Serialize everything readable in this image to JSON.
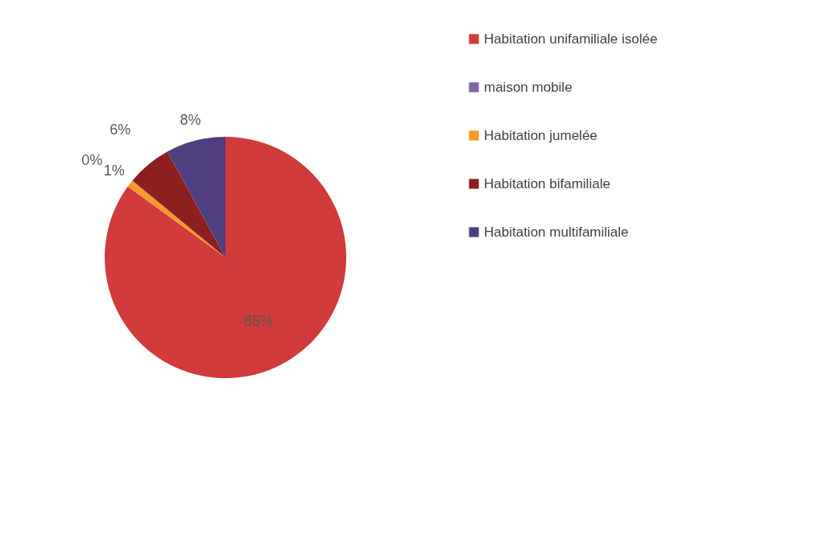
{
  "chart_data": {
    "type": "pie",
    "categories": [
      "Habitation unifamiliale isolée",
      "maison mobile",
      "Habitation jumelée",
      "Habitation bifamiliale",
      "Habitation multifamiliale"
    ],
    "values": [
      85,
      0,
      1,
      6,
      8
    ],
    "colors": [
      "#d13b3b",
      "#8064a2",
      "#f59a2b",
      "#8e1f1f",
      "#4f3f7f"
    ],
    "value_labels": [
      "85%",
      "0%",
      "1%",
      "6%",
      "8%"
    ],
    "legend": "right"
  }
}
